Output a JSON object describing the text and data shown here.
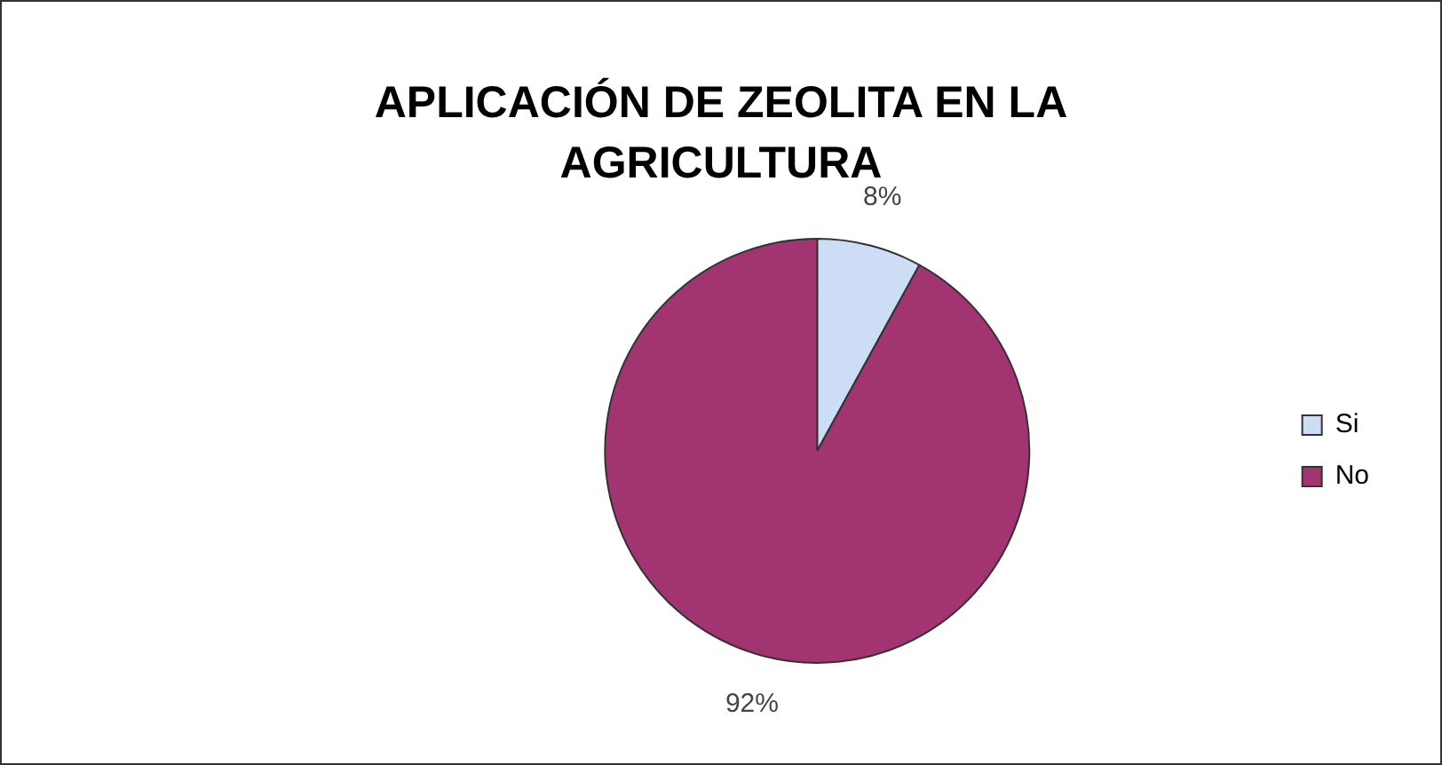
{
  "chart_data": {
    "type": "pie",
    "title": "APLICACIÓN DE ZEOLITA EN LA AGRICULTURA",
    "categories": [
      "Si",
      "No"
    ],
    "values": [
      8,
      92
    ],
    "colors": [
      "#ccddf5",
      "#a33472"
    ],
    "value_labels": [
      "8%",
      "92%"
    ],
    "legend": "right"
  }
}
